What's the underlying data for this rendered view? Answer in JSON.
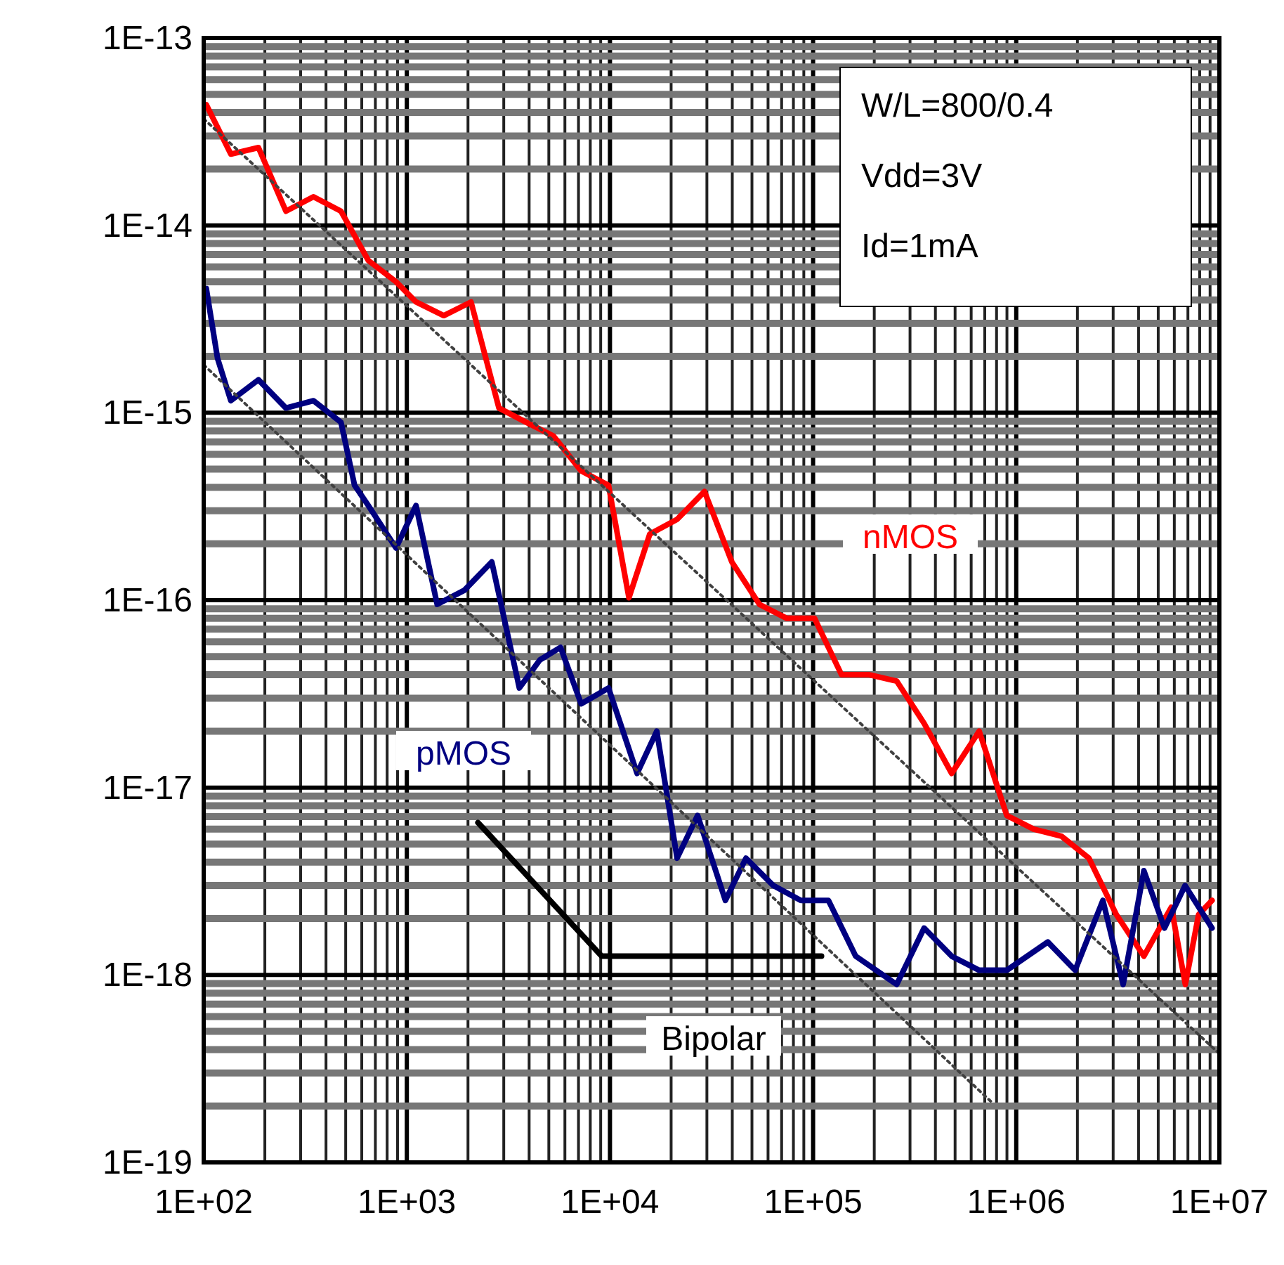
{
  "chart_data": {
    "type": "line",
    "log": "xy",
    "grid": true,
    "xlim": [
      100,
      10000000
    ],
    "ylim": [
      1e-19,
      1e-13
    ],
    "xticks": [
      {
        "value": 100,
        "label": "1E+02"
      },
      {
        "value": 1000,
        "label": "1E+03"
      },
      {
        "value": 10000,
        "label": "1E+04"
      },
      {
        "value": 100000,
        "label": "1E+05"
      },
      {
        "value": 1000000,
        "label": "1E+06"
      },
      {
        "value": 10000000,
        "label": "1E+07"
      }
    ],
    "yticks": [
      {
        "value": 1e-13,
        "label": "1E-13"
      },
      {
        "value": 1e-14,
        "label": "1E-14"
      },
      {
        "value": 1e-15,
        "label": "1E-15"
      },
      {
        "value": 1e-16,
        "label": "1E-16"
      },
      {
        "value": 1e-17,
        "label": "1E-17"
      },
      {
        "value": 1e-18,
        "label": "1E-18"
      },
      {
        "value": 1e-19,
        "label": "1E-19"
      }
    ],
    "annotations": [
      "W/L=800/0.4",
      "Vdd=3V",
      "Id=1mA"
    ],
    "series": [
      {
        "name": "nMOS",
        "color": "#ff0000",
        "line_style": "solid",
        "x": [
          103,
          136,
          186,
          254,
          347,
          474,
          646,
          884,
          1110,
          1520,
          2070,
          2840,
          3870,
          5280,
          7210,
          9840,
          12400,
          15700,
          21400,
          29200,
          39800,
          54400,
          74200,
          101600,
          138000,
          189000,
          258000,
          352000,
          481000,
          657000,
          898000,
          1220000,
          1670000,
          2280000,
          3110000,
          4250000,
          5800000,
          6800000,
          7900000,
          9200000
        ],
        "values": [
          4.4e-14,
          2.4e-14,
          2.6e-14,
          1.19e-14,
          1.42e-14,
          1.19e-14,
          6.5e-15,
          5e-15,
          3.9e-15,
          3.3e-15,
          3.9e-15,
          1.06e-15,
          8.9e-16,
          7.5e-16,
          4.9e-16,
          4.1e-16,
          1.03e-16,
          2.25e-16,
          2.7e-16,
          3.8e-16,
          1.6e-16,
          9.5e-17,
          8e-17,
          8e-17,
          4e-17,
          4e-17,
          3.7e-17,
          2.2e-17,
          1.19e-17,
          2e-17,
          7.1e-18,
          6e-18,
          5.5e-18,
          4.2e-18,
          2.1e-18,
          1.26e-18,
          2.3e-18,
          8.9e-19,
          2.1e-18,
          2.5e-18
        ]
      },
      {
        "name": "pMOS",
        "color": "#000080",
        "line_style": "solid",
        "x": [
          103,
          117,
          136,
          186,
          254,
          347,
          474,
          553,
          646,
          884,
          1110,
          1410,
          1920,
          2620,
          3580,
          4520,
          5710,
          7210,
          9840,
          13600,
          17000,
          21400,
          27000,
          37000,
          46700,
          63700,
          87000,
          119000,
          162000,
          258000,
          352000,
          481000,
          657000,
          898000,
          1430000,
          1950000,
          2670000,
          3360000,
          4250000,
          5370000,
          6780000,
          9200000
        ],
        "values": [
          4.6e-15,
          1.95e-15,
          1.16e-15,
          1.5e-15,
          1.06e-15,
          1.16e-15,
          8.9e-16,
          4.1e-16,
          3.2e-16,
          1.9e-16,
          3.2e-16,
          9.5e-17,
          1.13e-16,
          1.6e-16,
          3.4e-17,
          4.8e-17,
          5.6e-17,
          2.8e-17,
          3.4e-17,
          1.19e-17,
          2e-17,
          4.2e-18,
          7.1e-18,
          2.5e-18,
          4.2e-18,
          3e-18,
          2.5e-18,
          2.5e-18,
          1.26e-18,
          8.9e-19,
          1.78e-18,
          1.26e-18,
          1.06e-18,
          1.06e-18,
          1.5e-18,
          1.06e-18,
          2.5e-18,
          8.9e-19,
          3.6e-18,
          1.78e-18,
          3e-18,
          1.78e-18
        ]
      },
      {
        "name": "Bipolar",
        "color": "#000000",
        "line_style": "solid",
        "x": [
          2240,
          9100,
          110000
        ],
        "values": [
          6.5e-18,
          1.26e-18,
          1.26e-18
        ]
      },
      {
        "color": "#404040",
        "line_style": "dotted",
        "x": [
          100,
          10000000
        ],
        "values": [
          3.7e-14,
          3.8e-19
        ]
      },
      {
        "color": "#404040",
        "line_style": "dotted",
        "x": [
          100,
          770000
        ],
        "values": [
          1.8e-15,
          2.06e-19
        ]
      }
    ]
  }
}
